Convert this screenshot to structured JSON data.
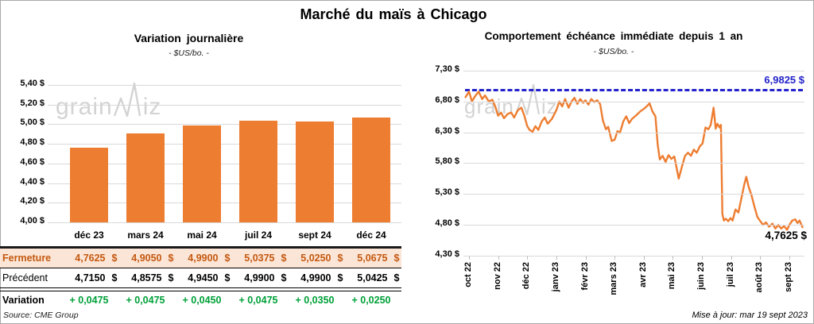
{
  "page": {
    "title": "Marché du maïs à Chicago",
    "source": "Source: CME Group",
    "updated": "Mise à jour: mar 19 sept 2023",
    "watermark": {
      "part1": "grain",
      "part2": "iz"
    }
  },
  "colors": {
    "bar_orange": "#ED7D31",
    "line_orange": "#ED7D31",
    "reference_blue": "#2323CB",
    "fermeture_text": "#C45911",
    "fermeture_bg": "#FBE5D6",
    "variation_green": "#00A038",
    "gridline_gray": "#D9D9D9",
    "watermark_gray": "#D3D3D3"
  },
  "table": {
    "columns": [
      "déc 23",
      "mars 24",
      "mai 24",
      "juil 24",
      "sept 24",
      "déc 24"
    ],
    "rows": [
      {
        "label": "Fermeture",
        "style": "row-fermeture",
        "suffix": "$",
        "values": [
          "4,7625",
          "4,9050",
          "4,9900",
          "5,0375",
          "5,0250",
          "5,0675"
        ]
      },
      {
        "label": "Précédent",
        "style": "row-precedent",
        "suffix": "$",
        "values": [
          "4,7150",
          "4,8575",
          "4,9450",
          "4,9900",
          "4,9900",
          "5,0425"
        ]
      },
      {
        "label": "Variation",
        "style": "row-variation",
        "suffix": "",
        "values": [
          "+ 0,0475",
          "+ 0,0475",
          "+ 0,0450",
          "+ 0,0475",
          "+ 0,0350",
          "+ 0,0250"
        ]
      }
    ]
  },
  "chart_data": [
    {
      "type": "bar",
      "title": "Variation journalière",
      "subtitle": "- $US/bo. -",
      "categories": [
        "déc 23",
        "mars 24",
        "mai 24",
        "juil 24",
        "sept 24",
        "déc 24"
      ],
      "values": [
        4.7625,
        4.905,
        4.99,
        5.0375,
        5.025,
        5.0675
      ],
      "ylabel": "$US/bo.",
      "ylim": [
        4.0,
        5.4
      ],
      "ytick_step": 0.2,
      "y_ticks": [
        "5,40 $",
        "5,20 $",
        "5,00 $",
        "4,80 $",
        "4,60 $",
        "4,40 $",
        "4,20 $",
        "4,00 $"
      ],
      "grid": true
    },
    {
      "type": "line",
      "title": "Comportement échéance immédiate depuis 1 an",
      "subtitle": "- $US/bo. -",
      "x_labels": [
        "oct 22",
        "nov 22",
        "déc 22",
        "janv 23",
        "févr 23",
        "mars 23",
        "avr 23",
        "mai 23",
        "juin 23",
        "juil 23",
        "août 23",
        "sept 23"
      ],
      "ylim": [
        4.3,
        7.3
      ],
      "ytick_step": 0.5,
      "y_ticks": [
        "7,30 $",
        "6,80 $",
        "6,30 $",
        "5,80 $",
        "5,30 $",
        "4,80 $",
        "4,30 $"
      ],
      "grid": true,
      "reference_line": {
        "value": 6.9825,
        "style": "dashed"
      },
      "ref_label": "6,9825 $",
      "end_value": 4.7625,
      "end_label": "4,7625 $",
      "series": [
        {
          "name": "échéance immédiate",
          "points": [
            [
              -0.12,
              6.87
            ],
            [
              0.0,
              6.96
            ],
            [
              0.1,
              6.8
            ],
            [
              0.2,
              6.88
            ],
            [
              0.33,
              6.96
            ],
            [
              0.45,
              6.84
            ],
            [
              0.55,
              6.9
            ],
            [
              0.68,
              6.8
            ],
            [
              0.8,
              6.83
            ],
            [
              0.9,
              6.72
            ],
            [
              1.0,
              6.57
            ],
            [
              1.1,
              6.62
            ],
            [
              1.2,
              6.53
            ],
            [
              1.33,
              6.6
            ],
            [
              1.45,
              6.62
            ],
            [
              1.55,
              6.54
            ],
            [
              1.68,
              6.66
            ],
            [
              1.8,
              6.7
            ],
            [
              1.9,
              6.57
            ],
            [
              2.0,
              6.4
            ],
            [
              2.08,
              6.34
            ],
            [
              2.18,
              6.31
            ],
            [
              2.28,
              6.4
            ],
            [
              2.38,
              6.34
            ],
            [
              2.5,
              6.48
            ],
            [
              2.6,
              6.54
            ],
            [
              2.7,
              6.44
            ],
            [
              2.85,
              6.52
            ],
            [
              3.0,
              6.66
            ],
            [
              3.1,
              6.8
            ],
            [
              3.2,
              6.72
            ],
            [
              3.3,
              6.84
            ],
            [
              3.42,
              6.7
            ],
            [
              3.52,
              6.8
            ],
            [
              3.62,
              6.86
            ],
            [
              3.72,
              6.76
            ],
            [
              3.82,
              6.84
            ],
            [
              3.92,
              6.78
            ],
            [
              4.0,
              6.82
            ],
            [
              4.1,
              6.75
            ],
            [
              4.2,
              6.84
            ],
            [
              4.3,
              6.79
            ],
            [
              4.4,
              6.82
            ],
            [
              4.5,
              6.76
            ],
            [
              4.6,
              6.49
            ],
            [
              4.7,
              6.35
            ],
            [
              4.78,
              6.39
            ],
            [
              4.9,
              6.16
            ],
            [
              5.0,
              6.18
            ],
            [
              5.1,
              6.32
            ],
            [
              5.18,
              6.29
            ],
            [
              5.3,
              6.48
            ],
            [
              5.4,
              6.56
            ],
            [
              5.5,
              6.45
            ],
            [
              5.6,
              6.52
            ],
            [
              5.75,
              6.58
            ],
            [
              5.88,
              6.64
            ],
            [
              6.0,
              6.68
            ],
            [
              6.1,
              6.72
            ],
            [
              6.2,
              6.77
            ],
            [
              6.3,
              6.64
            ],
            [
              6.4,
              6.56
            ],
            [
              6.48,
              6.1
            ],
            [
              6.55,
              5.86
            ],
            [
              6.65,
              5.92
            ],
            [
              6.75,
              5.82
            ],
            [
              6.85,
              5.93
            ],
            [
              6.95,
              5.87
            ],
            [
              7.05,
              5.91
            ],
            [
              7.2,
              5.55
            ],
            [
              7.32,
              5.76
            ],
            [
              7.42,
              5.92
            ],
            [
              7.52,
              5.97
            ],
            [
              7.62,
              5.92
            ],
            [
              7.72,
              6.02
            ],
            [
              7.82,
              5.97
            ],
            [
              7.92,
              6.07
            ],
            [
              8.02,
              6.12
            ],
            [
              8.12,
              6.38
            ],
            [
              8.22,
              6.35
            ],
            [
              8.3,
              6.42
            ],
            [
              8.4,
              6.7
            ],
            [
              8.47,
              6.36
            ],
            [
              8.53,
              6.44
            ],
            [
              8.6,
              6.38
            ],
            [
              8.65,
              6.42
            ],
            [
              8.7,
              4.98
            ],
            [
              8.75,
              4.87
            ],
            [
              8.82,
              4.9
            ],
            [
              8.9,
              4.86
            ],
            [
              8.98,
              4.91
            ],
            [
              9.05,
              4.87
            ],
            [
              9.15,
              5.05
            ],
            [
              9.25,
              5.0
            ],
            [
              9.35,
              5.22
            ],
            [
              9.45,
              5.45
            ],
            [
              9.52,
              5.58
            ],
            [
              9.6,
              5.42
            ],
            [
              9.7,
              5.28
            ],
            [
              9.8,
              5.1
            ],
            [
              9.9,
              4.93
            ],
            [
              10.0,
              4.86
            ],
            [
              10.1,
              4.8
            ],
            [
              10.2,
              4.84
            ],
            [
              10.3,
              4.77
            ],
            [
              10.42,
              4.82
            ],
            [
              10.52,
              4.74
            ],
            [
              10.62,
              4.8
            ],
            [
              10.72,
              4.74
            ],
            [
              10.82,
              4.78
            ],
            [
              10.92,
              4.72
            ],
            [
              11.0,
              4.8
            ],
            [
              11.1,
              4.87
            ],
            [
              11.2,
              4.89
            ],
            [
              11.28,
              4.83
            ],
            [
              11.35,
              4.87
            ],
            [
              11.45,
              4.7625
            ]
          ]
        }
      ]
    }
  ]
}
